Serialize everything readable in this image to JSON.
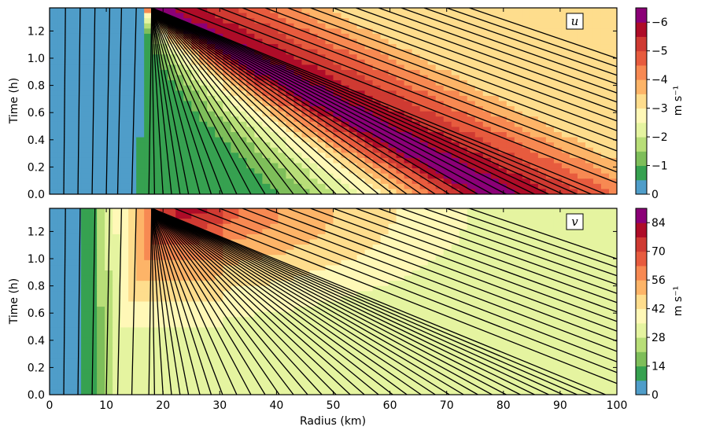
{
  "chart_data": {
    "type": "heatmap",
    "xlabel": "Radius (km)",
    "x_ticks": [
      "0",
      "10",
      "20",
      "30",
      "40",
      "50",
      "60",
      "70",
      "80",
      "90",
      "100"
    ],
    "xlim": [
      0,
      100
    ],
    "panels": [
      {
        "variable": "u",
        "ylabel": "Time (h)",
        "y_ticks": [
          "0.0",
          "0.2",
          "0.4",
          "0.6",
          "0.8",
          "1.0",
          "1.2"
        ],
        "ylim": [
          0,
          1.37
        ],
        "colorbar": {
          "label": "m s⁻¹",
          "ticks": [
            "0",
            "−1",
            "−2",
            "−3",
            "−4",
            "−5",
            "−6"
          ],
          "range": [
            0,
            -6.5
          ],
          "colors": [
            "#4f9dc9",
            "#36a150",
            "#7ebe5a",
            "#b8de78",
            "#e5f4a0",
            "#fff8b7",
            "#fedd8d",
            "#fdb468",
            "#f78952",
            "#e75b3e",
            "#cf3a32",
            "#ae0c28",
            "#8b0077"
          ]
        }
      },
      {
        "variable": "v",
        "ylabel": "Time (h)",
        "y_ticks": [
          "0.0",
          "0.2",
          "0.4",
          "0.6",
          "0.8",
          "1.0",
          "1.2"
        ],
        "ylim": [
          0,
          1.37
        ],
        "colorbar": {
          "label": "m s⁻¹",
          "ticks": [
            "0",
            "14",
            "28",
            "42",
            "56",
            "70",
            "84"
          ],
          "range": [
            0,
            91
          ],
          "colors": [
            "#4f9dc9",
            "#36a150",
            "#7ebe5a",
            "#b8de78",
            "#e5f4a0",
            "#fff8b7",
            "#fedd8d",
            "#fdb468",
            "#f78952",
            "#e75b3e",
            "#cf3a32",
            "#ae0c28",
            "#8b0077"
          ]
        }
      }
    ],
    "grid": false,
    "characteristics": {
      "focus_radius_km": 18,
      "top_time_h": 1.37,
      "inner_lines_km": [
        2.5,
        5,
        7.5,
        10,
        12,
        14.5
      ],
      "fan_lines_at_t0_km": [
        17.5,
        18.5,
        20,
        21.5,
        23,
        24.5,
        26.5,
        28.5,
        30.5,
        33,
        35.5,
        38,
        40.5,
        43,
        45.5,
        48,
        50.5,
        53,
        55.5,
        58,
        60.5,
        63,
        65.5,
        68,
        70.5,
        73,
        75.5,
        78,
        80.5,
        83,
        85.5,
        88,
        90.5,
        93,
        95.5,
        98
      ]
    }
  }
}
